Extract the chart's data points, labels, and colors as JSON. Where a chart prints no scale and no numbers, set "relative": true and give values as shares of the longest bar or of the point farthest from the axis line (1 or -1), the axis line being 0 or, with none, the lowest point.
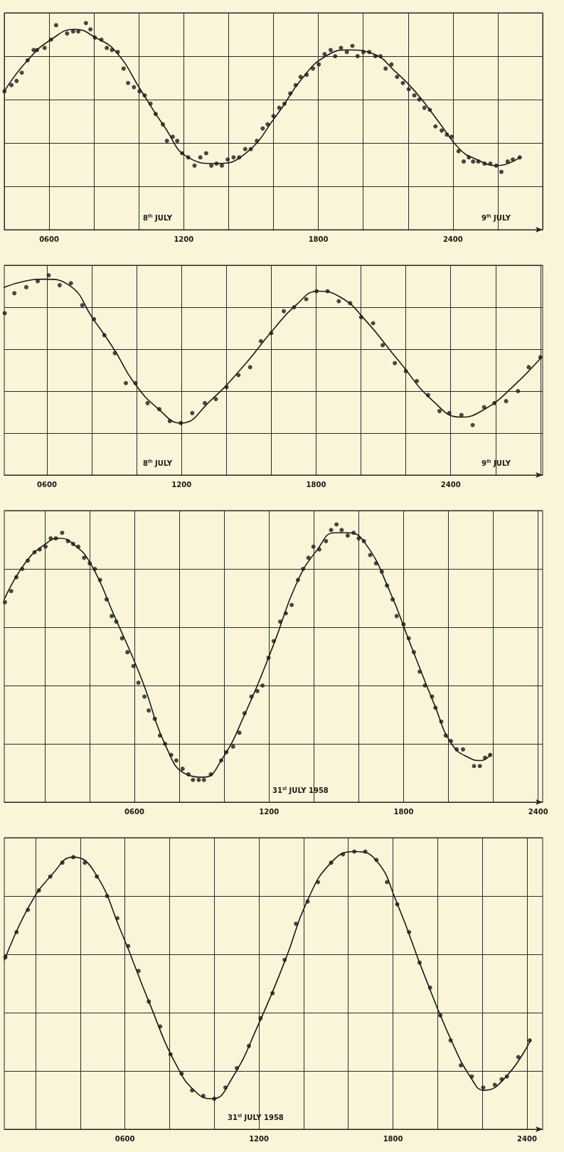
{
  "chart_data": [
    {
      "type": "scatter",
      "relative": true,
      "grid": true,
      "marker": "circle",
      "xlim": [
        400,
        2800
      ],
      "xticks": [
        {
          "value": 400,
          "label": null
        },
        {
          "value": 600,
          "label": "0600"
        },
        {
          "value": 800,
          "label": null
        },
        {
          "value": 1000,
          "label": null
        },
        {
          "value": 1200,
          "label": "1200"
        },
        {
          "value": 1400,
          "label": null
        },
        {
          "value": 1600,
          "label": null
        },
        {
          "value": 1800,
          "label": "1800"
        },
        {
          "value": 2000,
          "label": null
        },
        {
          "value": 2200,
          "label": null
        },
        {
          "value": 2400,
          "label": "2400"
        },
        {
          "value": 2600,
          "label": null
        },
        {
          "value": 2800,
          "label": null
        }
      ],
      "annotations": [
        "8$^{th}$ JULY",
        "9$^{th}$ JULY"
      ],
      "series": [
        {
          "type": "scatter",
          "color": "#1a1a1a",
          "x": [
            401,
            432,
            455,
            478,
            504,
            531,
            546,
            580,
            608,
            631,
            680,
            707,
            730,
            764,
            784,
            804,
            833,
            857,
            880,
            906,
            932,
            952,
            978,
            1003,
            1026,
            1052,
            1075,
            1107,
            1125,
            1151,
            1171,
            1193,
            1220,
            1248,
            1274,
            1300,
            1323,
            1346,
            1370,
            1396,
            1422,
            1447,
            1474,
            1499,
            1526,
            1552,
            1574,
            1600,
            1626,
            1649,
            1675,
            1699,
            1721,
            1748,
            1776,
            1802,
            1828,
            1855,
            1875,
            1901,
            1927,
            1952,
            1975,
            2001,
            2027,
            2054,
            2077,
            2100,
            2126,
            2151,
            2177,
            2203,
            2228,
            2250,
            2273,
            2297,
            2322,
            2350,
            2373,
            2394,
            2425,
            2448,
            2471,
            2490,
            2513,
            2541,
            2567,
            2593,
            2616,
            2644,
            2667,
            2698
          ],
          "values": [
            0.67,
            0.7,
            0.72,
            0.76,
            0.82,
            0.87,
            0.87,
            0.88,
            0.92,
            0.99,
            0.95,
            0.96,
            0.96,
            1.0,
            0.97,
            0.93,
            0.92,
            0.88,
            0.87,
            0.86,
            0.78,
            0.71,
            0.69,
            0.67,
            0.65,
            0.61,
            0.56,
            0.51,
            0.43,
            0.45,
            0.43,
            0.37,
            0.35,
            0.31,
            0.35,
            0.37,
            0.31,
            0.32,
            0.31,
            0.34,
            0.35,
            0.35,
            0.39,
            0.39,
            0.43,
            0.49,
            0.51,
            0.55,
            0.59,
            0.61,
            0.66,
            0.7,
            0.74,
            0.75,
            0.78,
            0.8,
            0.85,
            0.87,
            0.84,
            0.88,
            0.86,
            0.89,
            0.84,
            0.86,
            0.86,
            0.84,
            0.84,
            0.78,
            0.8,
            0.74,
            0.71,
            0.68,
            0.65,
            0.63,
            0.59,
            0.58,
            0.5,
            0.48,
            0.46,
            0.45,
            0.38,
            0.33,
            0.35,
            0.33,
            0.33,
            0.32,
            0.32,
            0.31,
            0.28,
            0.33,
            0.34,
            0.35
          ]
        },
        {
          "type": "line",
          "color": "#1a1a1a",
          "marker": "none",
          "x": [
            400,
            504,
            608,
            715,
            807,
            899,
            1006,
            1113,
            1220,
            1343,
            1465,
            1618,
            1726,
            1833,
            1940,
            2047,
            2139,
            2231,
            2338,
            2430,
            2506,
            2598,
            2698
          ],
          "values": [
            0.67,
            0.82,
            0.92,
            0.97,
            0.93,
            0.86,
            0.68,
            0.5,
            0.35,
            0.32,
            0.36,
            0.56,
            0.73,
            0.84,
            0.87,
            0.85,
            0.77,
            0.67,
            0.52,
            0.39,
            0.34,
            0.31,
            0.35
          ]
        }
      ]
    },
    {
      "type": "scatter",
      "relative": true,
      "grid": true,
      "marker": "circle",
      "xlim": [
        410,
        2810
      ],
      "xticks": [
        {
          "value": 600,
          "label": "0600"
        },
        {
          "value": 800,
          "label": null
        },
        {
          "value": 1000,
          "label": null
        },
        {
          "value": 1200,
          "label": "1200"
        },
        {
          "value": 1400,
          "label": null
        },
        {
          "value": 1600,
          "label": null
        },
        {
          "value": 1800,
          "label": "1800"
        },
        {
          "value": 2000,
          "label": null
        },
        {
          "value": 2200,
          "label": null
        },
        {
          "value": 2400,
          "label": "2400"
        },
        {
          "value": 2600,
          "label": null
        },
        {
          "value": 2800,
          "label": null
        }
      ],
      "annotations": [
        "8$^{th}$ JULY",
        "9$^{th}$ JULY"
      ],
      "series": [
        {
          "type": "scatter",
          "color": "#1a1a1a",
          "x": [
            412,
            455,
            508,
            559,
            608,
            657,
            707,
            758,
            810,
            856,
            903,
            952,
            995,
            1049,
            1101,
            1148,
            1197,
            1248,
            1304,
            1353,
            1401,
            1454,
            1506,
            1554,
            1600,
            1656,
            1702,
            1756,
            1802,
            1851,
            1901,
            1952,
            2001,
            2054,
            2097,
            2151,
            2200,
            2249,
            2299,
            2350,
            2394,
            2448,
            2498,
            2549,
            2595,
            2647,
            2700,
            2748,
            2800
          ],
          "values": [
            0.81,
            0.91,
            0.94,
            0.97,
            1.0,
            0.95,
            0.96,
            0.85,
            0.78,
            0.7,
            0.61,
            0.46,
            0.46,
            0.36,
            0.33,
            0.27,
            0.26,
            0.31,
            0.36,
            0.38,
            0.44,
            0.5,
            0.54,
            0.67,
            0.71,
            0.82,
            0.84,
            0.88,
            0.92,
            0.92,
            0.87,
            0.86,
            0.79,
            0.76,
            0.65,
            0.56,
            0.52,
            0.47,
            0.4,
            0.32,
            0.31,
            0.3,
            0.25,
            0.34,
            0.36,
            0.37,
            0.42,
            0.54,
            0.59
          ]
        },
        {
          "type": "line",
          "color": "#1a1a1a",
          "marker": "none",
          "x": [
            410,
            500,
            592,
            699,
            807,
            899,
            990,
            1098,
            1197,
            1327,
            1480,
            1603,
            1710,
            1809,
            1909,
            2016,
            2169,
            2322,
            2445,
            2552,
            2675,
            2805
          ],
          "values": [
            0.94,
            0.97,
            0.98,
            0.95,
            0.78,
            0.63,
            0.46,
            0.33,
            0.26,
            0.37,
            0.55,
            0.72,
            0.85,
            0.92,
            0.89,
            0.78,
            0.57,
            0.37,
            0.29,
            0.33,
            0.44,
            0.59
          ]
        }
      ]
    },
    {
      "type": "scatter",
      "relative": true,
      "grid": true,
      "marker": "circle",
      "xlim": [
        20,
        2420
      ],
      "xticks": [
        {
          "value": 200,
          "label": null
        },
        {
          "value": 400,
          "label": null
        },
        {
          "value": 600,
          "label": "0600"
        },
        {
          "value": 800,
          "label": null
        },
        {
          "value": 1000,
          "label": null
        },
        {
          "value": 1200,
          "label": "1200"
        },
        {
          "value": 1400,
          "label": null
        },
        {
          "value": 1600,
          "label": null
        },
        {
          "value": 1800,
          "label": "1800"
        },
        {
          "value": 2000,
          "label": null
        },
        {
          "value": 2200,
          "label": null
        },
        {
          "value": 2400,
          "label": "2400"
        }
      ],
      "annotations": [
        "31$^{st}$ JULY 1958"
      ],
      "series": [
        {
          "type": "scatter",
          "color": "#1a1a1a",
          "x": [
            23,
            51,
            74,
            100,
            125,
            155,
            178,
            204,
            227,
            250,
            278,
            304,
            327,
            350,
            376,
            401,
            424,
            447,
            476,
            499,
            519,
            545,
            569,
            596,
            618,
            645,
            664,
            691,
            714,
            737,
            764,
            787,
            815,
            841,
            861,
            887,
            910,
            941,
            987,
            1010,
            1040,
            1068,
            1091,
            1122,
            1148,
            1171,
            1198,
            1221,
            1250,
            1275,
            1301,
            1329,
            1352,
            1376,
            1398,
            1424,
            1454,
            1477,
            1501,
            1524,
            1551,
            1577,
            1600,
            1623,
            1651,
            1677,
            1703,
            1726,
            1751,
            1769,
            1800,
            1823,
            1846,
            1872,
            1895,
            1927,
            1942,
            1968,
            1988,
            2011,
            2037,
            2065,
            2114,
            2140,
            2163,
            2186
          ],
          "values": [
            0.72,
            0.76,
            0.81,
            0.84,
            0.87,
            0.9,
            0.91,
            0.92,
            0.95,
            0.95,
            0.97,
            0.94,
            0.93,
            0.92,
            0.88,
            0.86,
            0.84,
            0.8,
            0.73,
            0.67,
            0.65,
            0.59,
            0.54,
            0.49,
            0.43,
            0.38,
            0.33,
            0.3,
            0.24,
            0.21,
            0.17,
            0.15,
            0.12,
            0.1,
            0.08,
            0.08,
            0.08,
            0.1,
            0.15,
            0.18,
            0.2,
            0.25,
            0.32,
            0.38,
            0.4,
            0.42,
            0.52,
            0.58,
            0.65,
            0.68,
            0.71,
            0.8,
            0.84,
            0.88,
            0.92,
            0.91,
            0.94,
            0.98,
            1.0,
            0.98,
            0.96,
            0.97,
            0.95,
            0.94,
            0.89,
            0.86,
            0.83,
            0.78,
            0.73,
            0.67,
            0.64,
            0.59,
            0.54,
            0.47,
            0.42,
            0.38,
            0.34,
            0.29,
            0.24,
            0.22,
            0.19,
            0.19,
            0.13,
            0.13,
            0.16,
            0.17
          ]
        },
        {
          "type": "line",
          "color": "#1a1a1a",
          "marker": "none",
          "x": [
            20,
            112,
            204,
            266,
            327,
            404,
            511,
            634,
            741,
            833,
            910,
            987,
            1094,
            1217,
            1324,
            1416,
            1493,
            1554,
            1631,
            1738,
            1830,
            1938,
            2014,
            2091,
            2145,
            2186
          ],
          "values": [
            0.73,
            0.86,
            0.93,
            0.95,
            0.93,
            0.86,
            0.67,
            0.44,
            0.2,
            0.1,
            0.09,
            0.15,
            0.32,
            0.56,
            0.79,
            0.91,
            0.97,
            0.97,
            0.93,
            0.76,
            0.57,
            0.35,
            0.21,
            0.16,
            0.15,
            0.17
          ]
        }
      ]
    },
    {
      "type": "scatter",
      "relative": true,
      "grid": true,
      "marker": "circle",
      "xlim": [
        60,
        2470
      ],
      "xticks": [
        {
          "value": 200,
          "label": null
        },
        {
          "value": 400,
          "label": null
        },
        {
          "value": 600,
          "label": "0600"
        },
        {
          "value": 800,
          "label": null
        },
        {
          "value": 1000,
          "label": null
        },
        {
          "value": 1200,
          "label": "1200"
        },
        {
          "value": 1400,
          "label": null
        },
        {
          "value": 1600,
          "label": null
        },
        {
          "value": 1800,
          "label": "1800"
        },
        {
          "value": 2000,
          "label": null
        },
        {
          "value": 2200,
          "label": null
        },
        {
          "value": 2400,
          "label": "2400"
        }
      ],
      "annotations": [
        "31$^{st}$ JULY 1958"
      ],
      "series": [
        {
          "type": "scatter",
          "color": "#1a1a1a",
          "x": [
            65,
            115,
            166,
            215,
            266,
            320,
            369,
            421,
            474,
            520,
            566,
            615,
            661,
            707,
            758,
            804,
            854,
            901,
            951,
            1000,
            1050,
            1101,
            1155,
            1207,
            1261,
            1315,
            1366,
            1418,
            1464,
            1523,
            1576,
            1627,
            1676,
            1726,
            1773,
            1819,
            1872,
            1919,
            1966,
            2012,
            2058,
            2104,
            2153,
            2204,
            2256,
            2287,
            2310,
            2361,
            2412
          ],
          "values": [
            0.62,
            0.71,
            0.79,
            0.86,
            0.91,
            0.96,
            0.98,
            0.96,
            0.91,
            0.84,
            0.76,
            0.66,
            0.57,
            0.46,
            0.37,
            0.27,
            0.2,
            0.14,
            0.12,
            0.11,
            0.15,
            0.22,
            0.3,
            0.4,
            0.49,
            0.61,
            0.74,
            0.82,
            0.89,
            0.96,
            0.99,
            1.0,
            1.0,
            0.97,
            0.89,
            0.81,
            0.71,
            0.6,
            0.51,
            0.41,
            0.32,
            0.23,
            0.19,
            0.15,
            0.16,
            0.18,
            0.19,
            0.26,
            0.32
          ]
        },
        {
          "type": "line",
          "color": "#1a1a1a",
          "marker": "none",
          "x": [
            62,
            169,
            277,
            369,
            461,
            584,
            707,
            831,
            923,
            992,
            1077,
            1199,
            1323,
            1415,
            1523,
            1627,
            1723,
            1815,
            1938,
            2061,
            2153,
            2207,
            2307,
            2415
          ],
          "values": [
            0.61,
            0.8,
            0.92,
            0.98,
            0.93,
            0.71,
            0.46,
            0.23,
            0.13,
            0.11,
            0.18,
            0.38,
            0.62,
            0.82,
            0.96,
            1.0,
            0.97,
            0.82,
            0.56,
            0.32,
            0.18,
            0.14,
            0.19,
            0.32
          ]
        }
      ]
    }
  ]
}
